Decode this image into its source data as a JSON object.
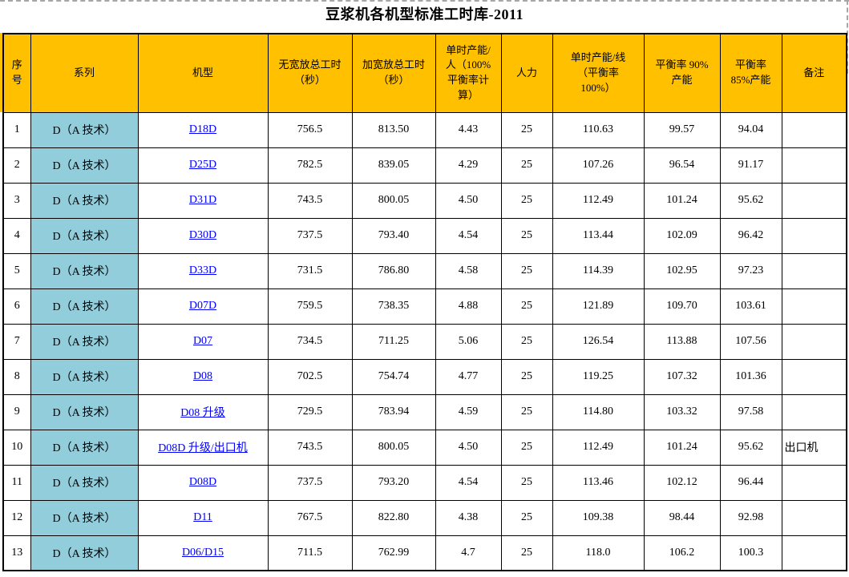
{
  "page": {
    "title": "豆浆机各机型标准工时库-2011"
  },
  "colors": {
    "header_bg": "#FFC000",
    "series_bg": "#92CDDC",
    "link": "#0000FF",
    "grid_border": "#000000",
    "page_break_dash": "#A6A6A6"
  },
  "table": {
    "columns": [
      {
        "key": "index",
        "label": "序\n号"
      },
      {
        "key": "series",
        "label": "系列"
      },
      {
        "key": "model",
        "label": "机型"
      },
      {
        "key": "no_allowance_time",
        "label": "无宽放总工时\n（秒）"
      },
      {
        "key": "allowance_time",
        "label": "加宽放总工时\n（秒）"
      },
      {
        "key": "capacity_per_person",
        "label": "单时产能/\n人（100%\n平衡率计\n算）"
      },
      {
        "key": "manpower",
        "label": "人力"
      },
      {
        "key": "capacity_per_line",
        "label": "单时产能/线\n（平衡率\n100%）"
      },
      {
        "key": "capacity_90",
        "label": "平衡率 90%\n产能"
      },
      {
        "key": "capacity_85",
        "label": "平衡率\n85%产能"
      },
      {
        "key": "remark",
        "label": "备注"
      }
    ],
    "rows": [
      {
        "index": "1",
        "series": "D（A 技术）",
        "model": "D18D",
        "no_allowance_time": "756.5",
        "allowance_time": "813.50",
        "capacity_per_person": "4.43",
        "manpower": "25",
        "capacity_per_line": "110.63",
        "capacity_90": "99.57",
        "capacity_85": "94.04",
        "remark": ""
      },
      {
        "index": "2",
        "series": "D（A 技术）",
        "model": "D25D",
        "no_allowance_time": "782.5",
        "allowance_time": "839.05",
        "capacity_per_person": "4.29",
        "manpower": "25",
        "capacity_per_line": "107.26",
        "capacity_90": "96.54",
        "capacity_85": "91.17",
        "remark": ""
      },
      {
        "index": "3",
        "series": "D（A 技术）",
        "model": "D31D",
        "no_allowance_time": "743.5",
        "allowance_time": "800.05",
        "capacity_per_person": "4.50",
        "manpower": "25",
        "capacity_per_line": "112.49",
        "capacity_90": "101.24",
        "capacity_85": "95.62",
        "remark": ""
      },
      {
        "index": "4",
        "series": "D（A 技术）",
        "model": "D30D",
        "no_allowance_time": "737.5",
        "allowance_time": "793.40",
        "capacity_per_person": "4.54",
        "manpower": "25",
        "capacity_per_line": "113.44",
        "capacity_90": "102.09",
        "capacity_85": "96.42",
        "remark": ""
      },
      {
        "index": "5",
        "series": "D（A 技术）",
        "model": "D33D",
        "no_allowance_time": "731.5",
        "allowance_time": "786.80",
        "capacity_per_person": "4.58",
        "manpower": "25",
        "capacity_per_line": "114.39",
        "capacity_90": "102.95",
        "capacity_85": "97.23",
        "remark": ""
      },
      {
        "index": "6",
        "series": "D（A 技术）",
        "model": "D07D",
        "no_allowance_time": "759.5",
        "allowance_time": "738.35",
        "capacity_per_person": "4.88",
        "manpower": "25",
        "capacity_per_line": "121.89",
        "capacity_90": "109.70",
        "capacity_85": "103.61",
        "remark": ""
      },
      {
        "index": "7",
        "series": "D（A 技术）",
        "model": "D07",
        "no_allowance_time": "734.5",
        "allowance_time": "711.25",
        "capacity_per_person": "5.06",
        "manpower": "25",
        "capacity_per_line": "126.54",
        "capacity_90": "113.88",
        "capacity_85": "107.56",
        "remark": ""
      },
      {
        "index": "8",
        "series": "D（A 技术）",
        "model": "D08",
        "no_allowance_time": "702.5",
        "allowance_time": "754.74",
        "capacity_per_person": "4.77",
        "manpower": "25",
        "capacity_per_line": "119.25",
        "capacity_90": "107.32",
        "capacity_85": "101.36",
        "remark": ""
      },
      {
        "index": "9",
        "series": "D（A 技术）",
        "model": "D08 升级",
        "no_allowance_time": "729.5",
        "allowance_time": "783.94",
        "capacity_per_person": "4.59",
        "manpower": "25",
        "capacity_per_line": "114.80",
        "capacity_90": "103.32",
        "capacity_85": "97.58",
        "remark": ""
      },
      {
        "index": "10",
        "series": "D（A 技术）",
        "model": "D08D 升级/出口机",
        "no_allowance_time": "743.5",
        "allowance_time": "800.05",
        "capacity_per_person": "4.50",
        "manpower": "25",
        "capacity_per_line": "112.49",
        "capacity_90": "101.24",
        "capacity_85": "95.62",
        "remark": "出口机"
      },
      {
        "index": "11",
        "series": "D（A 技术）",
        "model": "D08D",
        "no_allowance_time": "737.5",
        "allowance_time": "793.20",
        "capacity_per_person": "4.54",
        "manpower": "25",
        "capacity_per_line": "113.46",
        "capacity_90": "102.12",
        "capacity_85": "96.44",
        "remark": ""
      },
      {
        "index": "12",
        "series": "D（A 技术）",
        "model": "D11",
        "no_allowance_time": "767.5",
        "allowance_time": "822.80",
        "capacity_per_person": "4.38",
        "manpower": "25",
        "capacity_per_line": "109.38",
        "capacity_90": "98.44",
        "capacity_85": "92.98",
        "remark": ""
      },
      {
        "index": "13",
        "series": "D（A 技术）",
        "model": "D06/D15",
        "no_allowance_time": "711.5",
        "allowance_time": "762.99",
        "capacity_per_person": "4.7",
        "manpower": "25",
        "capacity_per_line": "118.0",
        "capacity_90": "106.2",
        "capacity_85": "100.3",
        "remark": ""
      }
    ]
  }
}
